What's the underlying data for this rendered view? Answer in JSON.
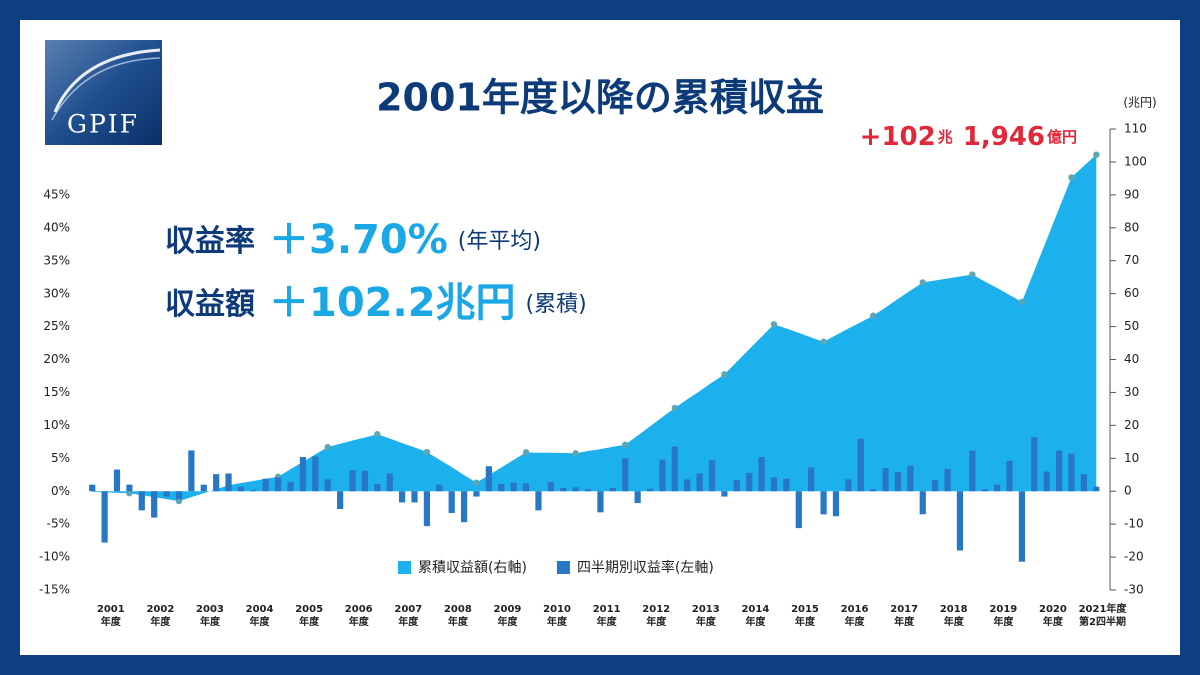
{
  "logo": "GPIF",
  "chart_data": {
    "type": "bar",
    "title": "2001年度以降の累積収益",
    "annotations": [
      [
        "収益率",
        "＋3.70%",
        "(年平均)"
      ],
      [
        "収益額",
        "＋102.2兆円",
        "(累積)"
      ]
    ],
    "peak_label": [
      "+102",
      "兆",
      "1,946",
      "億円"
    ],
    "y2_label": "(兆円)",
    "categories": [
      null,
      "2001年度",
      null,
      null,
      null,
      "2002年度",
      null,
      null,
      null,
      "2003年度",
      null,
      null,
      null,
      "2004年度",
      null,
      null,
      null,
      "2005年度",
      null,
      null,
      null,
      "2006年度",
      null,
      null,
      null,
      "2007年度",
      null,
      null,
      null,
      "2008年度",
      null,
      null,
      null,
      "2009年度",
      null,
      null,
      null,
      "2010年度",
      null,
      null,
      null,
      "2011年度",
      null,
      null,
      null,
      "2012年度",
      null,
      null,
      null,
      "2013年度",
      null,
      null,
      null,
      "2014年度",
      null,
      null,
      null,
      "2015年度",
      null,
      null,
      null,
      "2016年度",
      null,
      null,
      null,
      "2017年度",
      null,
      null,
      null,
      "2018年度",
      null,
      null,
      null,
      "2019年度",
      null,
      null,
      null,
      "2020年度",
      null,
      null,
      null,
      "2021年度第2四半期"
    ],
    "series": [
      {
        "name": "累積収益額(右軸)",
        "type": "area",
        "axis": "y2",
        "color": "#1cb0ec",
        "marker_color": "#5ea6b4",
        "values": [
          -0.2,
          -0.3,
          -0.5,
          -0.6,
          -1.2,
          -1.8,
          -2.4,
          -3.0,
          -1.8,
          -0.6,
          0.6,
          1.8,
          2.5,
          3.1,
          3.8,
          4.4,
          6.7,
          8.9,
          11.2,
          13.4,
          14.4,
          15.4,
          16.3,
          17.3,
          16.0,
          14.6,
          13.3,
          11.9,
          9.6,
          7.3,
          4.9,
          2.6,
          4.9,
          7.2,
          9.5,
          11.8,
          11.7,
          11.7,
          11.6,
          11.5,
          12.2,
          12.8,
          13.5,
          14.1,
          16.9,
          19.7,
          22.5,
          25.3,
          27.9,
          30.4,
          33.0,
          35.5,
          39.3,
          43.1,
          46.9,
          50.7,
          49.4,
          48.1,
          46.7,
          45.4,
          47.4,
          49.4,
          51.3,
          53.3,
          55.8,
          58.4,
          60.9,
          63.4,
          64.0,
          64.6,
          65.2,
          65.8,
          63.7,
          61.7,
          59.6,
          57.5,
          67.0,
          76.4,
          85.9,
          95.3,
          98.8,
          102.2
        ]
      },
      {
        "name": "四半期別収益率(左軸)",
        "type": "bar",
        "color": "#2876c6",
        "values": [
          1.0,
          -7.8,
          3.3,
          1.0,
          -2.9,
          -4.0,
          -0.8,
          -1.2,
          6.2,
          1.0,
          2.6,
          2.7,
          0.7,
          0.2,
          1.9,
          2.1,
          1.4,
          5.2,
          5.3,
          1.8,
          -2.7,
          3.2,
          3.1,
          1.1,
          2.7,
          -1.7,
          -1.7,
          -5.3,
          1.0,
          -3.3,
          -4.7,
          -0.8,
          3.8,
          1.1,
          1.3,
          1.2,
          -2.9,
          1.4,
          0.5,
          0.6,
          0.3,
          -3.2,
          0.5,
          5.0,
          -1.8,
          0.4,
          4.8,
          6.8,
          1.8,
          2.7,
          4.7,
          -0.8,
          1.7,
          2.8,
          5.2,
          2.1,
          1.9,
          -5.6,
          3.6,
          -3.5,
          -3.8,
          1.8,
          8.0,
          0.3,
          3.5,
          2.9,
          3.9,
          -3.5,
          1.7,
          3.4,
          -9.0,
          6.2,
          0.3,
          1.0,
          4.6,
          -10.7,
          8.2,
          3.0,
          6.2,
          5.7,
          2.6,
          0.7
        ]
      }
    ],
    "ylim": [
      -15,
      45
    ],
    "yticks": [
      {
        "value": 45,
        "label": "45%"
      },
      {
        "value": 40,
        "label": "40%"
      },
      {
        "value": 35,
        "label": "35%"
      },
      {
        "value": 30,
        "label": "30%"
      },
      {
        "value": 25,
        "label": "25%"
      },
      {
        "value": 20,
        "label": "20%"
      },
      {
        "value": 15,
        "label": "15%"
      },
      {
        "value": 10,
        "label": "10%"
      },
      {
        "value": 5,
        "label": "5%"
      },
      {
        "value": 0,
        "label": "0%"
      },
      {
        "value": -5,
        "label": "-5%"
      },
      {
        "value": -10,
        "label": "-10%"
      },
      {
        "value": -15,
        "label": "-15%"
      }
    ],
    "y2lim": [
      -30,
      110
    ],
    "y2ticks": [
      110,
      100,
      90,
      80,
      70,
      60,
      50,
      40,
      30,
      20,
      10,
      0,
      -10,
      -20,
      -30
    ],
    "legend": "bottom"
  }
}
